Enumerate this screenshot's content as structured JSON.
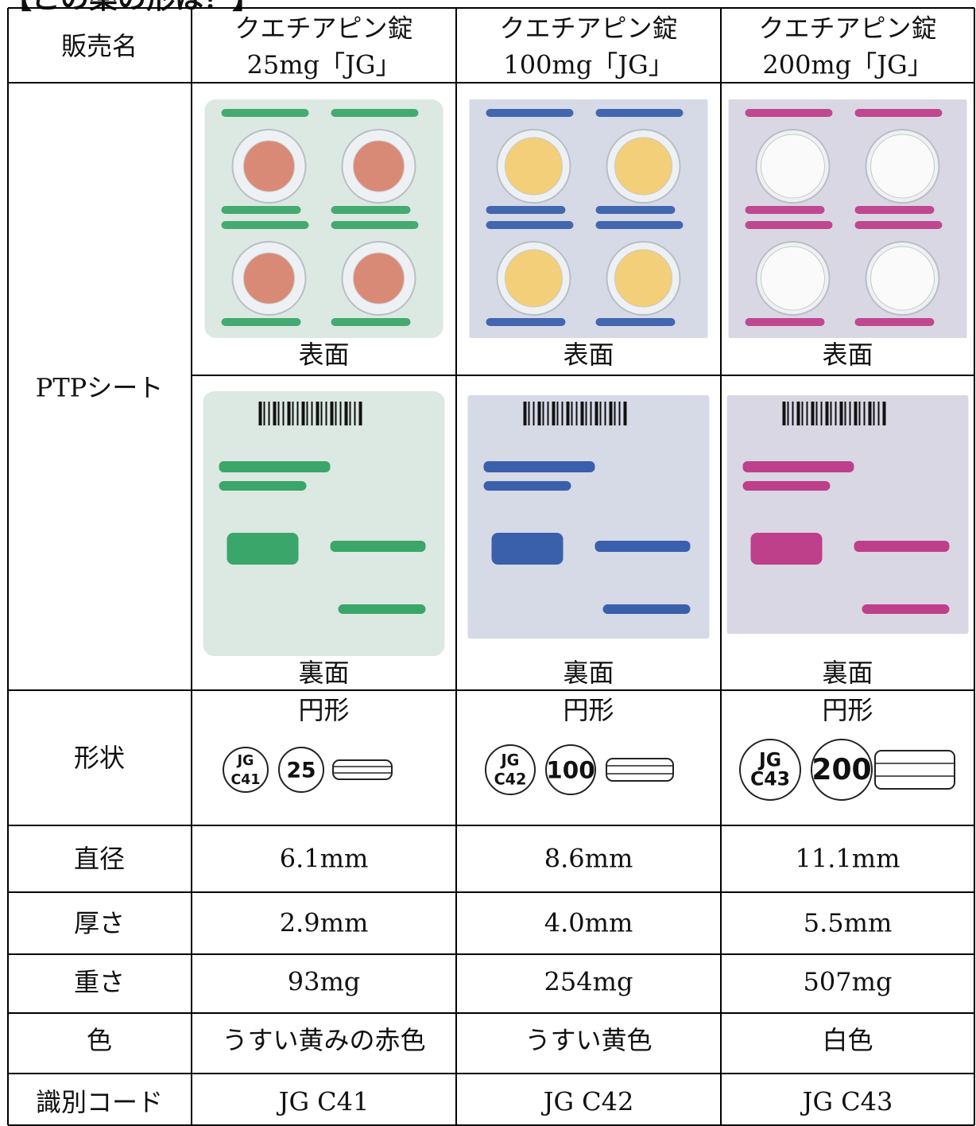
{
  "title": "【この薬の形は？】",
  "row_labels": {
    "name": "販売名",
    "ptp": "PTPシート",
    "shape": "形状",
    "diameter": "直径",
    "thickness": "厚さ",
    "weight": "重さ",
    "color": "色",
    "code": "識別コード"
  },
  "columns": [
    {
      "name": [
        "クエチアピン錠",
        "25mg「JG」"
      ],
      "front_caption": "表面",
      "back_caption": "裏面",
      "shape": "円形",
      "imprint": [
        "JG",
        "C41"
      ],
      "mark": "25",
      "diameter": "6.1mm",
      "thickness": "2.9mm",
      "weight": "93mg",
      "color": "うすい黄みの赤色",
      "code": "JG C41",
      "sheet_color": "#dce8e2",
      "pill_color": "#d98a76",
      "accent_color": "#1f9a55"
    },
    {
      "name": [
        "クエチアピン錠",
        "100mg「JG」"
      ],
      "front_caption": "表面",
      "back_caption": "裏面",
      "shape": "円形",
      "imprint": [
        "JG",
        "C42"
      ],
      "mark": "100",
      "diameter": "8.6mm",
      "thickness": "4.0mm",
      "weight": "254mg",
      "color": "うすい黄色",
      "code": "JG C42",
      "sheet_color": "#d6d9e6",
      "pill_color": "#f3cf7a",
      "accent_color": "#1e4aa0"
    },
    {
      "name": [
        "クエチアピン錠",
        "200mg「JG」"
      ],
      "front_caption": "表面",
      "back_caption": "裏面",
      "shape": "円形",
      "imprint": [
        "JG",
        "C43"
      ],
      "mark": "200",
      "diameter": "11.1mm",
      "thickness": "5.5mm",
      "weight": "507mg",
      "color": "白色",
      "code": "JG C43",
      "sheet_color": "#d9d7e3",
      "pill_color": "#fafafa",
      "accent_color": "#b8247a"
    }
  ]
}
